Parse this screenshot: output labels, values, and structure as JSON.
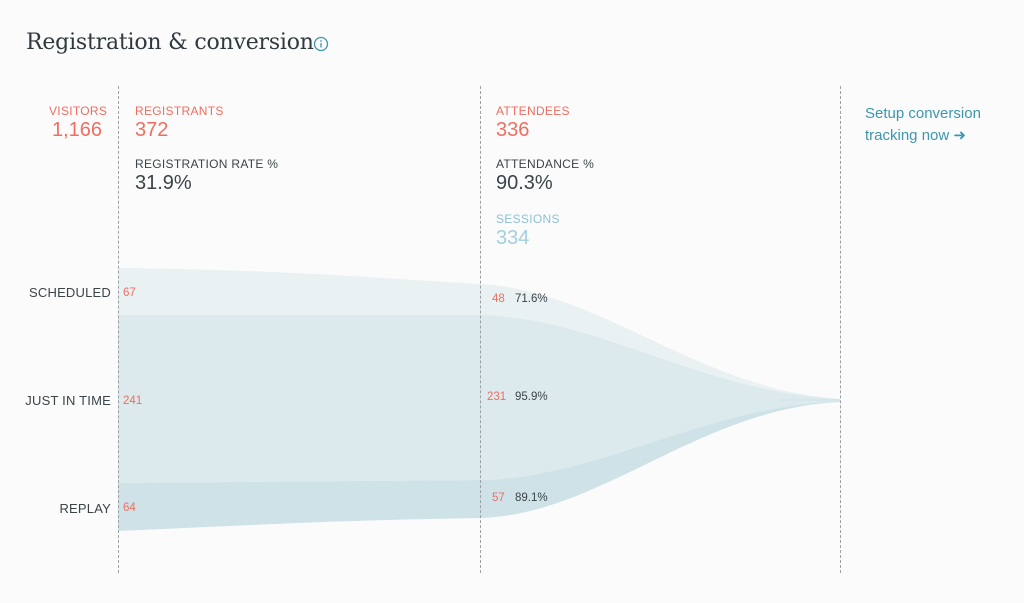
{
  "header": {
    "title": "Registration & conversion",
    "info_icon": "info-icon"
  },
  "metrics": {
    "visitors": {
      "label": "VISITORS",
      "value": "1,166"
    },
    "registrants": {
      "label": "REGISTRANTS",
      "value": "372"
    },
    "registration_rate": {
      "label": "REGISTRATION RATE %",
      "value": "31.9%"
    },
    "attendees": {
      "label": "ATTENDEES",
      "value": "336"
    },
    "attendance": {
      "label": "ATTENDANCE %",
      "value": "90.3%"
    },
    "sessions": {
      "label": "SESSIONS",
      "value": "334"
    }
  },
  "funnel": {
    "rows": [
      {
        "label": "SCHEDULED",
        "registrants": "67",
        "attendees": "48",
        "rate": "71.6%"
      },
      {
        "label": "JUST IN TIME",
        "registrants": "241",
        "attendees": "231",
        "rate": "95.9%"
      },
      {
        "label": "REPLAY",
        "registrants": "64",
        "attendees": "57",
        "rate": "89.1%"
      }
    ]
  },
  "cta": {
    "line1": "Setup conversion",
    "line2": "tracking now ➜"
  },
  "colors": {
    "accent_red": "#ef6e60",
    "text_dark": "#3a4449",
    "link_teal": "#3c96ad",
    "flow_top": "#e9f1f3",
    "flow_mid": "#dce9ed",
    "flow_bottom": "#cfe2e8"
  }
}
